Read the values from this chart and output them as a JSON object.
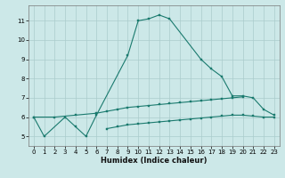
{
  "title": "",
  "xlabel": "Humidex (Indice chaleur)",
  "bg_color": "#cce8e8",
  "grid_color": "#aacccc",
  "line_color": "#1a7a6e",
  "ylim": [
    4.5,
    11.8
  ],
  "xlim": [
    -0.5,
    23.5
  ],
  "yticks": [
    5,
    6,
    7,
    8,
    9,
    10,
    11
  ],
  "xticks": [
    0,
    1,
    2,
    3,
    4,
    5,
    6,
    7,
    8,
    9,
    10,
    11,
    12,
    13,
    14,
    15,
    16,
    17,
    18,
    19,
    20,
    21,
    22,
    23
  ],
  "c1x": [
    0,
    1,
    3,
    4,
    5,
    6,
    9,
    10,
    11,
    12,
    13,
    16,
    17,
    18,
    19,
    20,
    21,
    22,
    23
  ],
  "c1y": [
    6.0,
    5.0,
    6.0,
    5.5,
    5.0,
    6.1,
    9.2,
    11.0,
    11.1,
    11.3,
    11.1,
    9.0,
    8.5,
    8.1,
    7.1,
    7.1,
    7.0,
    6.4,
    6.1
  ],
  "c2x": [
    0,
    2,
    4,
    6,
    7,
    8,
    9,
    10,
    11,
    12,
    13,
    14,
    15,
    16,
    17,
    18,
    19,
    20
  ],
  "c2y": [
    6.0,
    6.0,
    6.1,
    6.2,
    6.3,
    6.4,
    6.5,
    6.55,
    6.6,
    6.65,
    6.7,
    6.75,
    6.8,
    6.85,
    6.9,
    6.95,
    7.0,
    7.05
  ],
  "c3x": [
    7,
    8,
    9,
    10,
    11,
    12,
    13,
    14,
    15,
    16,
    17,
    18,
    19,
    20,
    21,
    22,
    23
  ],
  "c3y": [
    5.4,
    5.5,
    5.6,
    5.65,
    5.7,
    5.75,
    5.8,
    5.85,
    5.9,
    5.95,
    6.0,
    6.05,
    6.1,
    6.1,
    6.05,
    6.0,
    6.0
  ],
  "tick_labelsize": 5,
  "xlabel_fontsize": 6,
  "linewidth": 0.8,
  "markersize": 1.8
}
